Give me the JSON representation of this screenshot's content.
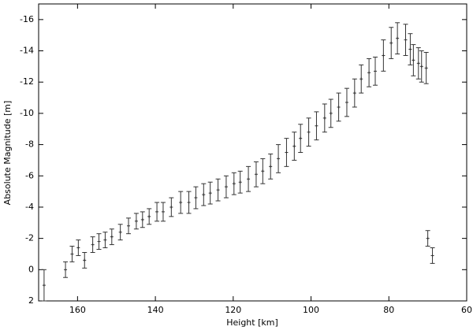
{
  "chart_data": {
    "type": "errorbar",
    "x_label": "Height [km]",
    "y_label": "Absolute Magnitude [m]",
    "xlim": [
      170,
      60
    ],
    "xticks": [
      160,
      140,
      120,
      100,
      80,
      60
    ],
    "ylim": [
      2,
      -17
    ],
    "yticks": [
      -16,
      -14,
      -12,
      -10,
      -8,
      -6,
      -4,
      -2,
      0,
      2
    ],
    "color": "#333333",
    "series": [
      {
        "x": [
          168.6,
          163.1,
          161.4,
          159.8,
          158.2,
          156.1,
          154.5,
          152.9,
          151.2,
          149.0,
          146.9,
          144.9,
          143.3,
          141.6,
          139.6,
          138.0,
          135.9,
          133.5,
          131.4,
          129.6,
          127.6,
          125.9,
          123.9,
          121.8,
          119.8,
          118.2,
          116.1,
          114.1,
          112.4,
          110.4,
          108.4,
          106.3,
          104.3,
          102.7,
          100.6,
          98.6,
          96.5,
          94.9,
          92.9,
          90.8,
          88.8,
          87.1,
          85.1,
          83.5,
          81.4,
          79.4,
          77.8,
          75.7,
          74.5,
          73.7,
          72.4,
          71.6,
          70.4,
          70.0,
          68.8
        ],
        "values": [
          1.0,
          0.0,
          -1.0,
          -1.4,
          -0.6,
          -1.6,
          -1.8,
          -1.9,
          -2.1,
          -2.4,
          -2.8,
          -3.1,
          -3.2,
          -3.4,
          -3.7,
          -3.7,
          -4.0,
          -4.3,
          -4.3,
          -4.6,
          -4.8,
          -4.9,
          -5.1,
          -5.3,
          -5.5,
          -5.6,
          -5.8,
          -6.1,
          -6.3,
          -6.6,
          -7.1,
          -7.5,
          -7.9,
          -8.4,
          -8.8,
          -9.2,
          -9.7,
          -10.0,
          -10.4,
          -10.7,
          -11.3,
          -12.2,
          -12.6,
          -12.7,
          -13.7,
          -14.5,
          -14.8,
          -14.7,
          -14.1,
          -13.4,
          -13.2,
          -13.0,
          -12.9,
          -2.0,
          -0.9
        ],
        "errors": [
          1.0,
          0.5,
          0.5,
          0.5,
          0.5,
          0.5,
          0.5,
          0.5,
          0.5,
          0.5,
          0.5,
          0.5,
          0.5,
          0.5,
          0.6,
          0.6,
          0.6,
          0.7,
          0.7,
          0.7,
          0.7,
          0.7,
          0.7,
          0.7,
          0.7,
          0.7,
          0.8,
          0.8,
          0.8,
          0.8,
          0.9,
          0.9,
          0.9,
          0.9,
          0.9,
          0.9,
          0.9,
          0.9,
          0.9,
          0.9,
          0.9,
          0.9,
          0.9,
          0.9,
          1.0,
          1.0,
          1.0,
          1.0,
          1.0,
          1.0,
          1.0,
          1.0,
          1.0,
          0.5,
          0.5
        ]
      }
    ]
  }
}
